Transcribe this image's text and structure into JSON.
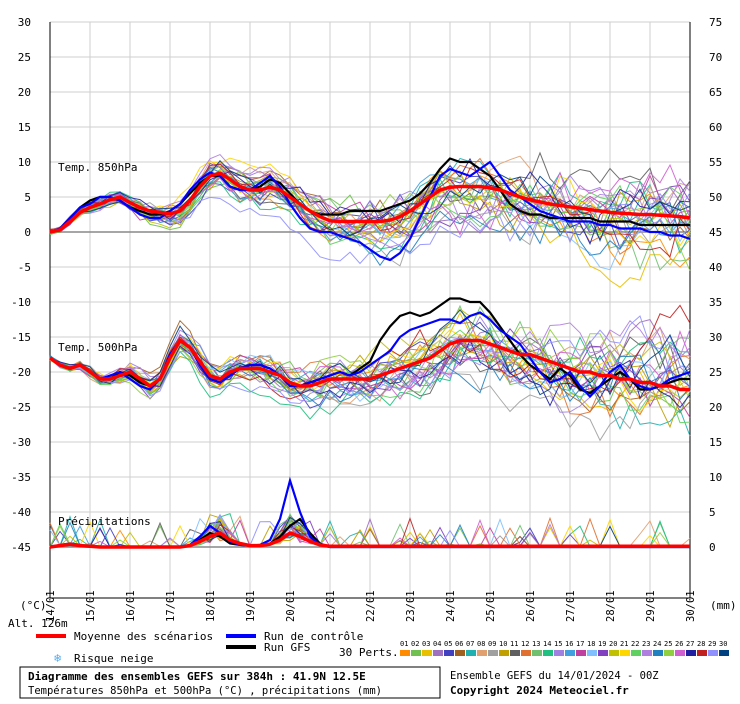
{
  "chart_data": {
    "type": "line",
    "left_axis": {
      "unit_label": "(°C)",
      "ticks": [
        30,
        25,
        20,
        15,
        10,
        5,
        0,
        -5,
        -10,
        -15,
        -20,
        -25,
        -30,
        -35,
        -40,
        -45
      ],
      "ylim": [
        -45,
        30
      ]
    },
    "right_axis": {
      "unit_label": "(mm)",
      "ticks": [
        75,
        70,
        65,
        60,
        55,
        50,
        45,
        40,
        35,
        30,
        25,
        20,
        15,
        10,
        5,
        0
      ],
      "ylim": [
        0,
        75
      ]
    },
    "x_axis": {
      "start_label": "Alt. 126m",
      "dates": [
        "14/01",
        "15/01",
        "16/01",
        "17/01",
        "18/01",
        "19/01",
        "20/01",
        "21/01",
        "22/01",
        "23/01",
        "24/01",
        "25/01",
        "26/01",
        "27/01",
        "28/01",
        "29/01",
        "30/01"
      ]
    },
    "grid": true,
    "panels": {
      "t850": "Temp. 850hPa",
      "t500": "Temp. 500hPa",
      "precip": "Précipitations"
    },
    "x_step_days": 0.25,
    "t850": {
      "mean": [
        0.0,
        0.3,
        1.5,
        2.8,
        3.5,
        4.0,
        4.6,
        5.0,
        4.2,
        3.5,
        3.0,
        2.8,
        2.6,
        3.0,
        4.5,
        6.5,
        8.0,
        8.4,
        7.5,
        6.5,
        6.0,
        6.0,
        6.4,
        6.0,
        5.0,
        4.0,
        3.0,
        2.2,
        1.6,
        1.5,
        1.5,
        1.5,
        1.5,
        1.5,
        1.7,
        2.2,
        3.0,
        4.0,
        5.0,
        6.0,
        6.4,
        6.5,
        6.5,
        6.5,
        6.3,
        6.0,
        5.5,
        5.0,
        4.6,
        4.3,
        4.0,
        3.8,
        3.6,
        3.4,
        3.2,
        3.0,
        2.8,
        2.7,
        2.6,
        2.5,
        2.5,
        2.4,
        2.3,
        2.2,
        2.0
      ],
      "control": [
        0.0,
        0.5,
        2.0,
        3.5,
        4.0,
        5.0,
        5.0,
        4.5,
        3.5,
        2.5,
        2.0,
        2.0,
        3.0,
        4.0,
        6.0,
        7.5,
        8.5,
        8.0,
        6.5,
        6.0,
        6.0,
        7.0,
        8.0,
        6.5,
        4.0,
        2.0,
        0.5,
        0.0,
        0.0,
        -0.5,
        -1.0,
        -1.5,
        -2.5,
        -3.5,
        -4.0,
        -3.0,
        -1.0,
        2.0,
        5.0,
        8.0,
        9.0,
        8.5,
        8.0,
        9.0,
        10.0,
        8.0,
        6.0,
        5.0,
        4.0,
        3.0,
        2.5,
        2.0,
        1.5,
        1.5,
        1.5,
        1.0,
        1.0,
        0.5,
        0.5,
        0.5,
        0.0,
        0.0,
        -0.5,
        -0.5,
        -1.0
      ],
      "gfs": [
        0.0,
        0.5,
        2.0,
        3.5,
        4.5,
        5.0,
        5.0,
        4.5,
        3.5,
        3.0,
        2.5,
        2.5,
        3.0,
        4.0,
        5.5,
        7.0,
        8.0,
        8.0,
        6.5,
        6.0,
        6.0,
        6.5,
        7.5,
        7.0,
        5.5,
        4.0,
        3.0,
        2.5,
        2.5,
        2.5,
        3.0,
        3.0,
        3.0,
        3.0,
        3.5,
        4.0,
        4.5,
        5.5,
        7.0,
        9.0,
        10.5,
        10.0,
        10.0,
        9.0,
        8.0,
        6.0,
        4.0,
        3.0,
        2.5,
        2.5,
        2.0,
        2.0,
        2.0,
        2.0,
        2.0,
        1.5,
        1.5,
        1.5,
        1.5,
        1.0,
        1.0,
        1.0,
        1.0,
        1.0,
        1.0
      ]
    },
    "t500": {
      "mean": [
        -18.0,
        -19.0,
        -19.5,
        -19.0,
        -20.0,
        -21.0,
        -21.0,
        -20.5,
        -20.0,
        -21.0,
        -22.0,
        -21.0,
        -18.0,
        -15.5,
        -16.5,
        -18.5,
        -20.5,
        -21.0,
        -20.0,
        -19.5,
        -19.5,
        -19.5,
        -20.0,
        -20.5,
        -21.5,
        -22.0,
        -22.0,
        -21.5,
        -21.0,
        -21.0,
        -21.0,
        -21.0,
        -21.0,
        -20.5,
        -20.0,
        -19.5,
        -19.0,
        -18.5,
        -18.0,
        -17.0,
        -16.0,
        -15.5,
        -15.5,
        -15.5,
        -16.0,
        -16.5,
        -17.0,
        -17.5,
        -17.5,
        -18.0,
        -18.5,
        -19.0,
        -19.5,
        -20.0,
        -20.0,
        -20.5,
        -20.5,
        -21.0,
        -21.0,
        -21.5,
        -21.5,
        -22.0,
        -22.0,
        -22.5,
        -22.5
      ],
      "control": [
        -18.0,
        -19.0,
        -19.5,
        -19.0,
        -20.0,
        -21.0,
        -20.5,
        -20.0,
        -21.0,
        -22.0,
        -22.5,
        -21.0,
        -17.5,
        -15.5,
        -16.5,
        -19.0,
        -21.0,
        -21.5,
        -20.5,
        -19.5,
        -19.0,
        -19.0,
        -19.5,
        -20.5,
        -22.0,
        -22.0,
        -21.5,
        -21.0,
        -20.5,
        -20.0,
        -20.5,
        -20.0,
        -19.0,
        -18.0,
        -17.0,
        -15.0,
        -14.0,
        -13.5,
        -13.0,
        -12.5,
        -12.5,
        -13.0,
        -12.0,
        -11.5,
        -12.5,
        -14.0,
        -15.0,
        -16.0,
        -18.0,
        -20.0,
        -21.5,
        -21.0,
        -20.0,
        -22.0,
        -23.5,
        -22.0,
        -20.0,
        -19.0,
        -21.0,
        -22.0,
        -22.5,
        -22.0,
        -21.0,
        -20.5,
        -20.0
      ],
      "gfs": [
        -18.0,
        -19.0,
        -19.5,
        -19.0,
        -20.0,
        -21.0,
        -21.0,
        -20.0,
        -20.5,
        -21.5,
        -22.0,
        -21.0,
        -17.5,
        -15.5,
        -16.5,
        -19.0,
        -21.0,
        -21.5,
        -20.5,
        -19.5,
        -19.0,
        -19.0,
        -19.5,
        -20.5,
        -21.5,
        -22.0,
        -21.5,
        -21.0,
        -20.5,
        -20.0,
        -20.5,
        -19.5,
        -18.5,
        -15.5,
        -13.5,
        -12.0,
        -11.5,
        -12.0,
        -11.5,
        -10.5,
        -9.5,
        -9.5,
        -10.0,
        -10.0,
        -11.5,
        -13.5,
        -15.5,
        -17.5,
        -19.0,
        -20.0,
        -21.0,
        -19.5,
        -20.5,
        -22.5,
        -23.0,
        -22.0,
        -21.0,
        -20.0,
        -21.0,
        -22.5,
        -22.5,
        -22.0,
        -21.5,
        -21.0,
        -21.0
      ]
    },
    "precip_mm": {
      "mean": [
        0.0,
        0.2,
        0.4,
        0.2,
        0.1,
        0.0,
        0.0,
        0.0,
        0.0,
        0.0,
        0.0,
        0.0,
        0.0,
        0.0,
        0.2,
        0.8,
        1.5,
        2.0,
        1.0,
        0.5,
        0.2,
        0.2,
        0.4,
        1.0,
        2.0,
        1.5,
        0.8,
        0.3,
        0.1,
        0.1,
        0.1,
        0.1,
        0.1,
        0.1,
        0.1,
        0.1,
        0.1,
        0.1,
        0.1,
        0.1,
        0.1,
        0.1,
        0.1,
        0.1,
        0.1,
        0.1,
        0.1,
        0.1,
        0.1,
        0.1,
        0.1,
        0.1,
        0.1,
        0.1,
        0.1,
        0.1,
        0.1,
        0.1,
        0.1,
        0.1,
        0.1,
        0.1,
        0.1,
        0.1,
        0.1
      ],
      "control": [
        0.0,
        0.3,
        0.5,
        0.3,
        0.1,
        0.0,
        0.0,
        0.0,
        0.0,
        0.0,
        0.0,
        0.0,
        0.0,
        0.0,
        0.3,
        1.5,
        3.0,
        2.0,
        0.8,
        0.3,
        0.2,
        0.3,
        1.0,
        4.0,
        9.5,
        5.0,
        1.5,
        0.3,
        0.0,
        0.0,
        0.0,
        0.0,
        0.0,
        0.0,
        0.0,
        0.0,
        0.0,
        0.0,
        0.0,
        0.0,
        0.0,
        0.0,
        0.0,
        0.0,
        0.0,
        0.0,
        0.0,
        0.0,
        0.0,
        0.0,
        0.0,
        0.0,
        0.0,
        0.0,
        0.0,
        0.0,
        0.0,
        0.0,
        0.0,
        0.0,
        0.0,
        0.0,
        0.0,
        0.0,
        0.0
      ],
      "gfs": [
        0.0,
        0.2,
        0.3,
        0.2,
        0.1,
        0.0,
        0.0,
        0.0,
        0.0,
        0.0,
        0.0,
        0.0,
        0.0,
        0.0,
        0.2,
        1.0,
        2.0,
        1.5,
        0.5,
        0.3,
        0.2,
        0.2,
        0.5,
        1.5,
        3.0,
        4.0,
        2.0,
        0.5,
        0.0,
        0.0,
        0.0,
        0.0,
        0.0,
        0.0,
        0.0,
        0.0,
        0.0,
        0.0,
        0.0,
        0.0,
        0.0,
        0.0,
        0.0,
        0.0,
        0.0,
        0.0,
        0.0,
        0.0,
        0.0,
        0.0,
        0.0,
        0.0,
        0.0,
        0.0,
        0.0,
        0.0,
        0.0,
        0.0,
        0.0,
        0.0,
        0.0,
        0.0,
        0.0,
        0.0,
        0.0
      ]
    },
    "legend": {
      "mean": "Moyenne des scénarios",
      "control": "Run de contrôle",
      "gfs": "Run GFS",
      "snow": "Risque neige",
      "perts_label": "30 Perts.",
      "pert_numbers": [
        "01",
        "02",
        "03",
        "04",
        "05",
        "06",
        "07",
        "08",
        "09",
        "10",
        "11",
        "12",
        "13",
        "14",
        "15",
        "16",
        "17",
        "18",
        "19",
        "20",
        "21",
        "22",
        "23",
        "24",
        "25",
        "26",
        "27",
        "28",
        "29",
        "30"
      ]
    },
    "colors": {
      "mean": "#ff0000",
      "control": "#0000ff",
      "gfs": "#000000",
      "snow": "#55aaee",
      "perts": [
        "#ff8c00",
        "#70c050",
        "#e8c000",
        "#a070c0",
        "#4040c0",
        "#a06020",
        "#20b0b0",
        "#e0a070",
        "#a0a0a0",
        "#c0a000",
        "#606060",
        "#e07030",
        "#70c070",
        "#20c080",
        "#a080e0",
        "#40a0e0",
        "#c040a0",
        "#80c0ff",
        "#8040c0",
        "#c0c000",
        "#ffd700",
        "#60d060",
        "#b080e0",
        "#2080c0",
        "#90d040",
        "#d060d0",
        "#2020a0",
        "#c02020",
        "#9090ff",
        "#004080"
      ]
    }
  },
  "footer": {
    "title": "Diagramme des ensembles GEFS sur 384h : 41.9N 12.5E",
    "subtitle": "Températures 850hPa et 500hPa (°C) , précipitations (mm)",
    "run": "Ensemble GEFS du 14/01/2024 - 00Z",
    "copyright": "Copyright 2024 Meteociel.fr"
  }
}
